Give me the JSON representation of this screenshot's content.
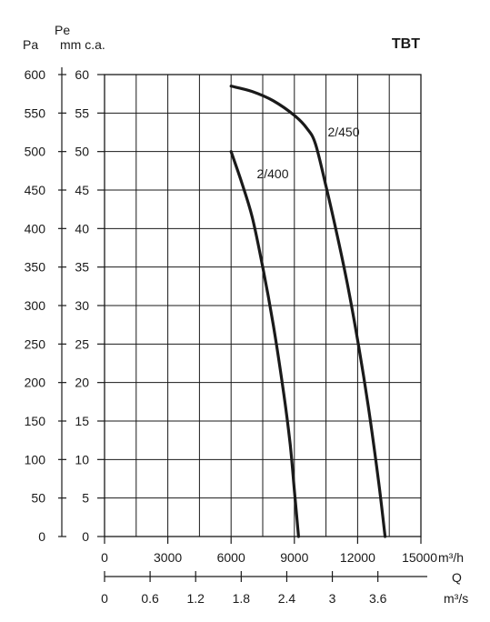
{
  "chart_data": {
    "type": "line",
    "title": "TBT",
    "y_left_unit": "Pa",
    "y_left_title": "Pe",
    "y_right_unit": "mm c.a.",
    "x_unit_m3h": "m³/h",
    "x_title_q": "Q",
    "x_unit_m3s": "m³/s",
    "xlim": [
      0,
      15000
    ],
    "ylim": [
      0,
      60
    ],
    "grid": true,
    "pa_ticks": [
      "0",
      "50",
      "100",
      "150",
      "200",
      "250",
      "300",
      "350",
      "400",
      "450",
      "500",
      "550",
      "600"
    ],
    "mmca_ticks": [
      "0",
      "5",
      "10",
      "15",
      "20",
      "25",
      "30",
      "35",
      "40",
      "45",
      "50",
      "55",
      "60"
    ],
    "m3h_ticks": [
      "0",
      "3000",
      "6000",
      "9000",
      "12000",
      "15000"
    ],
    "m3s_ticks": [
      "0",
      "0.6",
      "1.2",
      "1.8",
      "2.4",
      "3",
      "3.6"
    ],
    "series": [
      {
        "name": "2/400",
        "label": "2/400",
        "x": [
          6000,
          6500,
          7000,
          7500,
          8000,
          8500,
          8800,
          9000,
          9200
        ],
        "y": [
          50,
          46,
          41.5,
          35,
          27.5,
          18.5,
          12,
          6,
          0
        ]
      },
      {
        "name": "2/450",
        "label": "2/450",
        "x": [
          6000,
          7000,
          8000,
          9000,
          9600,
          10000,
          10500,
          11000,
          11500,
          12000,
          12500,
          13000,
          13300
        ],
        "y": [
          58.5,
          57.8,
          56.6,
          54.7,
          53,
          51,
          45.5,
          39.5,
          33,
          25.5,
          17,
          7,
          0
        ]
      }
    ]
  }
}
